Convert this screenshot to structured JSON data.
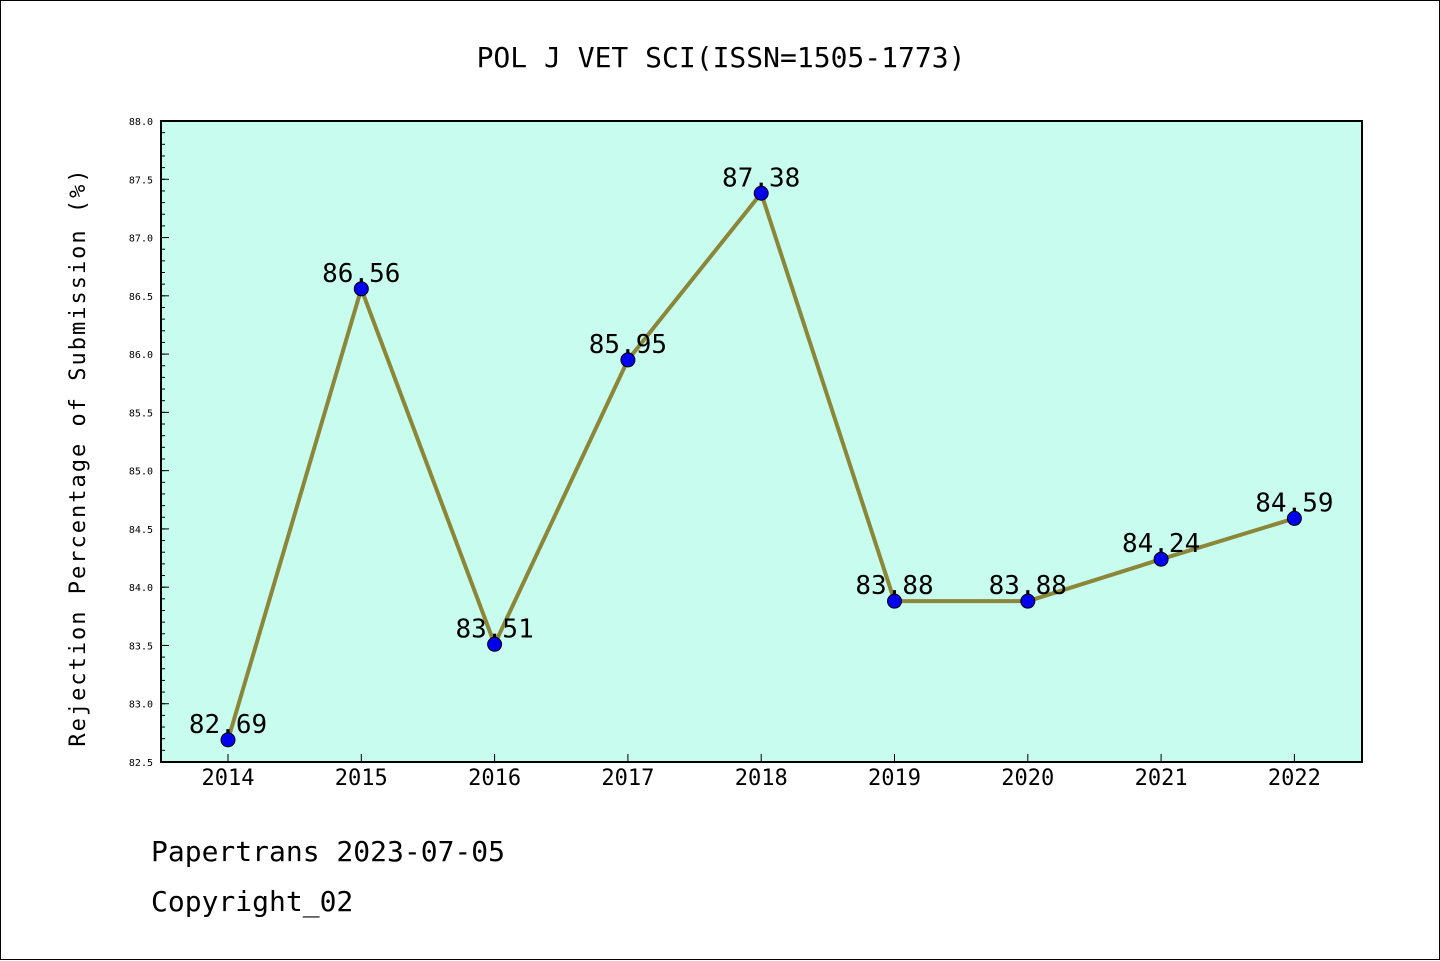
{
  "colors": {
    "plot_background": "#c8fcee",
    "line": "#8b8638",
    "marker": "#0000ee"
  },
  "footer": {
    "source": "Papertrans 2023-07-05",
    "copyright": "Copyright_02"
  },
  "chart_data": {
    "type": "line",
    "title": "POL J VET SCI(ISSN=1505-1773)",
    "xlabel": "",
    "ylabel": "Rejection Percentage of Submission (%)",
    "categories": [
      "2014",
      "2015",
      "2016",
      "2017",
      "2018",
      "2019",
      "2020",
      "2021",
      "2022"
    ],
    "series": [
      {
        "values": [
          82.69,
          86.56,
          83.51,
          85.95,
          87.38,
          83.88,
          83.88,
          84.24,
          84.59
        ]
      }
    ],
    "data_labels": [
      "82.69",
      "86.56",
      "83.51",
      "85.95",
      "87.38",
      "83.88",
      "83.88",
      "84.24",
      "84.59"
    ],
    "ylim": [
      82.5,
      88.0
    ],
    "yticks": [
      "82.5",
      "83.0",
      "83.5",
      "84.0",
      "84.5",
      "85.0",
      "85.5",
      "86.0",
      "86.5",
      "87.0",
      "87.5",
      "88.0"
    ],
    "grid": false,
    "legend": "none"
  }
}
